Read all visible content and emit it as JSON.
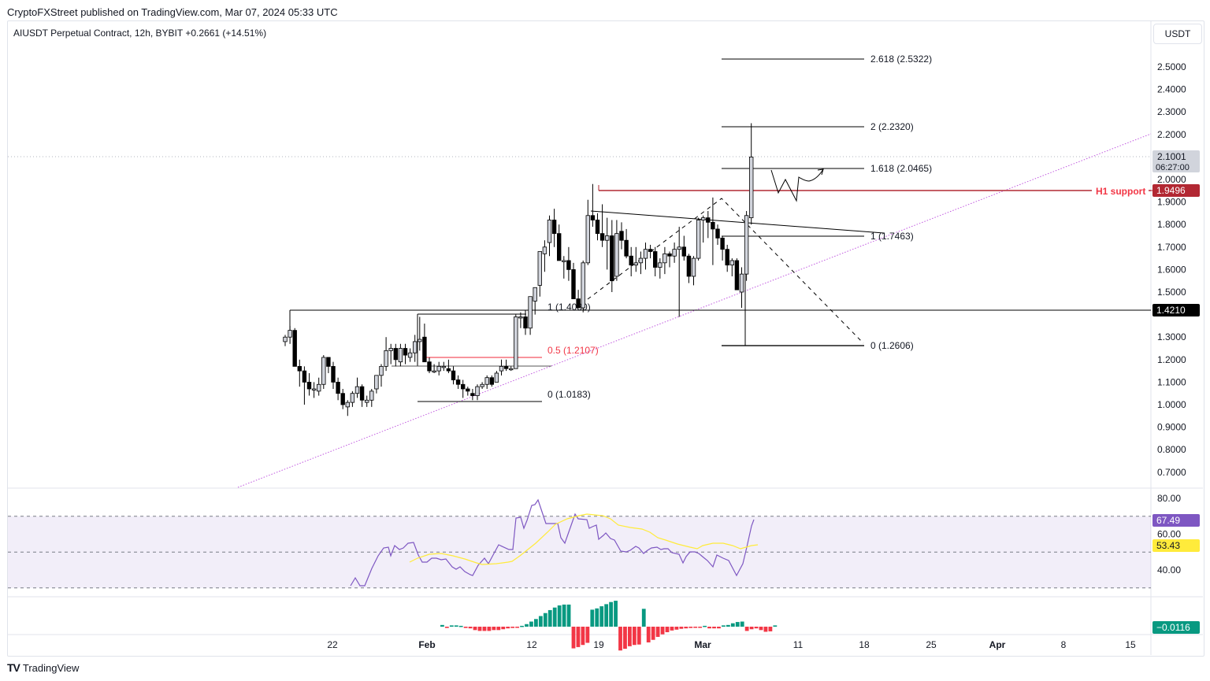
{
  "header": {
    "published": "CryptoFXStreet published on TradingView.com, Mar 07, 2024 05:33 UTC",
    "symbol_legend": "AIUSDT Perpetual Contract, 12h, BYBIT  +0.2661 (+14.51%)",
    "currency": "USDT"
  },
  "footer": {
    "brand": "TradingView",
    "logo": "TV"
  },
  "chart_data": {
    "type": "candlestick",
    "title": "AIUSDT Perpetual Contract, 12h, BYBIT",
    "change": "+0.2661 (+14.51%)",
    "price_axis": {
      "ticks": [
        "2.5000",
        "2.4000",
        "2.3000",
        "2.2000",
        "2.0000",
        "1.9000",
        "1.8000",
        "1.7000",
        "1.6000",
        "1.5000",
        "1.3000",
        "1.2000",
        "1.1000",
        "1.0000",
        "0.9000",
        "0.8000",
        "0.7000"
      ],
      "ylim": [
        0.65,
        2.6
      ]
    },
    "time_axis": {
      "ticks": [
        {
          "label": "22",
          "x": 422,
          "bold": false
        },
        {
          "label": "Feb",
          "x": 542,
          "bold": true
        },
        {
          "label": "12",
          "x": 675,
          "bold": false
        },
        {
          "label": "19",
          "x": 760,
          "bold": false
        },
        {
          "label": "Mar",
          "x": 892,
          "bold": true
        },
        {
          "label": "11",
          "x": 1013,
          "bold": false
        },
        {
          "label": "18",
          "x": 1097,
          "bold": false
        },
        {
          "label": "25",
          "x": 1182,
          "bold": false
        },
        {
          "label": "Apr",
          "x": 1266,
          "bold": true
        },
        {
          "label": "8",
          "x": 1350,
          "bold": false
        },
        {
          "label": "15",
          "x": 1435,
          "bold": false
        }
      ]
    },
    "price_labels": {
      "last": {
        "value": "2.1001",
        "countdown": "06:27:00",
        "color": "#d1d4dc"
      },
      "h1_support": {
        "value": "1.9496",
        "color": "#b22833"
      },
      "level": {
        "value": "1.4210",
        "color": "#000000"
      }
    },
    "annotations": {
      "h1_support_label": "H1 support",
      "fib1": [
        {
          "label": "1 (1.4080)",
          "price": 1.408
        },
        {
          "label": "0.5 (1.2107)",
          "price": 1.2107,
          "color": "#f23645"
        },
        {
          "label": "0 (1.0183)",
          "price": 1.0183
        }
      ],
      "fib2": [
        {
          "label": "2.618 (2.5322)",
          "price": 2.5322
        },
        {
          "label": "2 (2.2320)",
          "price": 2.232
        },
        {
          "label": "1.618 (2.0465)",
          "price": 2.0465
        },
        {
          "label": "1 (1.7463)",
          "price": 1.7463
        },
        {
          "label": "0 (1.2606)",
          "price": 1.2606
        }
      ]
    },
    "candles": [
      [
        1.28,
        1.31,
        1.26,
        1.3
      ],
      [
        1.3,
        1.35,
        1.27,
        1.33
      ],
      [
        1.33,
        1.34,
        1.17,
        1.17
      ],
      [
        1.17,
        1.2,
        1.08,
        1.15
      ],
      [
        1.15,
        1.17,
        1.0,
        1.1
      ],
      [
        1.1,
        1.14,
        1.04,
        1.07
      ],
      [
        1.07,
        1.1,
        1.03,
        1.07
      ],
      [
        1.06,
        1.12,
        1.04,
        1.09
      ],
      [
        1.09,
        1.22,
        1.07,
        1.21
      ],
      [
        1.21,
        1.21,
        1.14,
        1.17
      ],
      [
        1.17,
        1.19,
        1.07,
        1.1
      ],
      [
        1.1,
        1.12,
        1.02,
        1.05
      ],
      [
        1.05,
        1.07,
        0.98,
        1.0
      ],
      [
        0.99,
        1.02,
        0.95,
        1.01
      ],
      [
        1.01,
        1.06,
        0.99,
        1.05
      ],
      [
        1.05,
        1.12,
        1.03,
        1.08
      ],
      [
        1.08,
        1.09,
        0.99,
        1.02
      ],
      [
        1.01,
        1.04,
        0.99,
        1.02
      ],
      [
        1.02,
        1.07,
        0.99,
        1.06
      ],
      [
        1.07,
        1.12,
        1.05,
        1.13
      ],
      [
        1.13,
        1.18,
        1.08,
        1.17
      ],
      [
        1.17,
        1.3,
        1.15,
        1.24
      ],
      [
        1.24,
        1.27,
        1.18,
        1.25
      ],
      [
        1.25,
        1.27,
        1.17,
        1.2
      ],
      [
        1.19,
        1.27,
        1.17,
        1.25
      ],
      [
        1.25,
        1.27,
        1.18,
        1.22
      ],
      [
        1.21,
        1.25,
        1.19,
        1.23
      ],
      [
        1.23,
        1.31,
        1.19,
        1.28
      ],
      [
        1.28,
        1.39,
        1.24,
        1.29
      ],
      [
        1.3,
        1.36,
        1.19,
        1.19
      ],
      [
        1.19,
        1.21,
        1.14,
        1.15
      ],
      [
        1.15,
        1.18,
        1.14,
        1.15
      ],
      [
        1.15,
        1.19,
        1.13,
        1.17
      ],
      [
        1.17,
        1.19,
        1.15,
        1.17
      ],
      [
        1.16,
        1.2,
        1.14,
        1.15
      ],
      [
        1.15,
        1.17,
        1.09,
        1.11
      ],
      [
        1.11,
        1.13,
        1.07,
        1.09
      ],
      [
        1.09,
        1.11,
        1.03,
        1.07
      ],
      [
        1.07,
        1.08,
        1.04,
        1.06
      ],
      [
        1.05,
        1.07,
        1.02,
        1.04
      ],
      [
        1.04,
        1.09,
        1.02,
        1.08
      ],
      [
        1.08,
        1.1,
        1.07,
        1.09
      ],
      [
        1.09,
        1.13,
        1.07,
        1.12
      ],
      [
        1.12,
        1.13,
        1.08,
        1.09
      ],
      [
        1.1,
        1.15,
        1.1,
        1.14
      ],
      [
        1.15,
        1.2,
        1.13,
        1.17
      ],
      [
        1.17,
        1.2,
        1.15,
        1.16
      ],
      [
        1.16,
        1.17,
        1.15,
        1.16
      ],
      [
        1.16,
        1.4,
        1.16,
        1.39
      ],
      [
        1.39,
        1.41,
        1.34,
        1.39
      ],
      [
        1.39,
        1.42,
        1.31,
        1.34
      ],
      [
        1.34,
        1.45,
        1.31,
        1.48
      ],
      [
        1.46,
        1.5,
        1.4,
        1.52
      ],
      [
        1.53,
        1.62,
        1.48,
        1.68
      ],
      [
        1.67,
        1.73,
        1.59,
        1.7
      ],
      [
        1.72,
        1.84,
        1.66,
        1.82
      ],
      [
        1.82,
        1.87,
        1.7,
        1.76
      ],
      [
        1.76,
        1.8,
        1.64,
        1.64
      ],
      [
        1.64,
        1.66,
        1.56,
        1.64
      ],
      [
        1.64,
        1.7,
        1.55,
        1.6
      ],
      [
        1.6,
        1.63,
        1.49,
        1.47
      ],
      [
        1.47,
        1.51,
        1.44,
        1.43
      ],
      [
        1.43,
        1.64,
        1.41,
        1.63
      ],
      [
        1.63,
        1.91,
        1.62,
        1.84
      ],
      [
        1.84,
        1.98,
        1.79,
        1.82
      ],
      [
        1.82,
        1.85,
        1.73,
        1.76
      ],
      [
        1.76,
        1.89,
        1.7,
        1.73
      ],
      [
        1.73,
        1.83,
        1.6,
        1.75
      ],
      [
        1.75,
        1.82,
        1.5,
        1.55
      ],
      [
        1.57,
        1.82,
        1.55,
        1.76
      ],
      [
        1.77,
        1.81,
        1.69,
        1.73
      ],
      [
        1.73,
        1.78,
        1.65,
        1.66
      ],
      [
        1.66,
        1.7,
        1.57,
        1.62
      ],
      [
        1.62,
        1.7,
        1.59,
        1.63
      ],
      [
        1.63,
        1.68,
        1.58,
        1.65
      ],
      [
        1.65,
        1.72,
        1.6,
        1.69
      ],
      [
        1.69,
        1.71,
        1.65,
        1.68
      ],
      [
        1.68,
        1.7,
        1.57,
        1.61
      ],
      [
        1.61,
        1.65,
        1.56,
        1.63
      ],
      [
        1.63,
        1.7,
        1.58,
        1.67
      ],
      [
        1.67,
        1.68,
        1.61,
        1.66
      ],
      [
        1.66,
        1.72,
        1.63,
        1.69
      ],
      [
        1.69,
        1.79,
        1.39,
        1.7
      ],
      [
        1.7,
        1.75,
        1.64,
        1.66
      ],
      [
        1.66,
        1.67,
        1.54,
        1.57
      ],
      [
        1.57,
        1.66,
        1.53,
        1.65
      ],
      [
        1.65,
        1.83,
        1.64,
        1.82
      ],
      [
        1.82,
        1.84,
        1.72,
        1.83
      ],
      [
        1.83,
        1.86,
        1.74,
        1.81
      ],
      [
        1.81,
        1.92,
        1.62,
        1.78
      ],
      [
        1.78,
        1.8,
        1.71,
        1.74
      ],
      [
        1.74,
        1.75,
        1.64,
        1.69
      ],
      [
        1.69,
        1.71,
        1.59,
        1.62
      ],
      [
        1.62,
        1.65,
        1.57,
        1.64
      ],
      [
        1.64,
        1.65,
        1.52,
        1.51
      ],
      [
        1.5,
        1.61,
        1.43,
        1.58
      ],
      [
        1.58,
        1.86,
        1.55,
        1.84
      ],
      [
        1.83,
        2.25,
        1.8,
        2.1
      ]
    ],
    "rsi": {
      "levels": [
        "80.00",
        "60.00",
        "40.00"
      ],
      "value": "67.49",
      "value_color": "#7e57c2",
      "ma_value": "53.43",
      "ma_color": "#ffeb3b",
      "ylim": [
        20,
        85
      ]
    },
    "macd_histogram": {
      "value": "−0.0116",
      "color": "#089981",
      "bars": [
        0.004,
        -0.003,
        0.003,
        0.003,
        0.002,
        -0.003,
        -0.004,
        -0.008,
        -0.01,
        -0.01,
        -0.01,
        -0.008,
        -0.008,
        -0.006,
        -0.004,
        -0.003,
        -0.002,
        0.002,
        0.006,
        0.012,
        0.018,
        0.025,
        0.032,
        0.039,
        0.045,
        0.05,
        0.052,
        0.052,
        -0.051,
        -0.048,
        -0.043,
        -0.038,
        0.04,
        0.043,
        0.048,
        0.053,
        0.058,
        0.061,
        -0.056,
        -0.052,
        -0.046,
        -0.043,
        -0.042,
        0.042,
        -0.037,
        -0.031,
        -0.024,
        -0.018,
        -0.013,
        -0.009,
        -0.007,
        -0.005,
        -0.004,
        -0.003,
        -0.002,
        -0.002,
        0.002,
        -0.004,
        -0.004,
        -0.004,
        0.003,
        0.004,
        0.008,
        0.011,
        0.012,
        -0.01,
        -0.006,
        -0.004,
        -0.008,
        -0.012,
        -0.011,
        0.003
      ]
    }
  }
}
